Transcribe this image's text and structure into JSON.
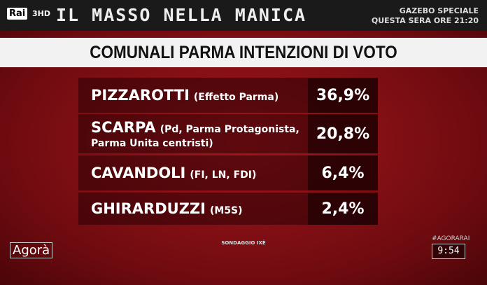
{
  "header": {
    "channel": "Rai",
    "channel_suffix": "3HD",
    "show_title": "IL MASSO NELLA MANICA",
    "promo_line1": "GAZEBO SPECIALE",
    "promo_line2": "QUESTA SERA ORE 21:20"
  },
  "title": "COMUNALI PARMA INTENZIONI DI VOTO",
  "table": {
    "rows": [
      {
        "name": "PIZZAROTTI",
        "party": "(Effetto Parma)",
        "value": "36,9%"
      },
      {
        "name": "SCARPA",
        "party": "(Pd, Parma Protagonista, Parma Unita centristi)",
        "value": "20,8%"
      },
      {
        "name": "CAVANDOLI",
        "party": "(FI, LN, FDI)",
        "value": "6,4%"
      },
      {
        "name": "GHIRARDUZZI",
        "party": "(M5S)",
        "value": "2,4%"
      }
    ]
  },
  "footer": {
    "source": "SONDAGGIO IXÈ",
    "logo": "Agorà",
    "hashtag": "#AGORARAI",
    "clock": "9:54"
  }
}
